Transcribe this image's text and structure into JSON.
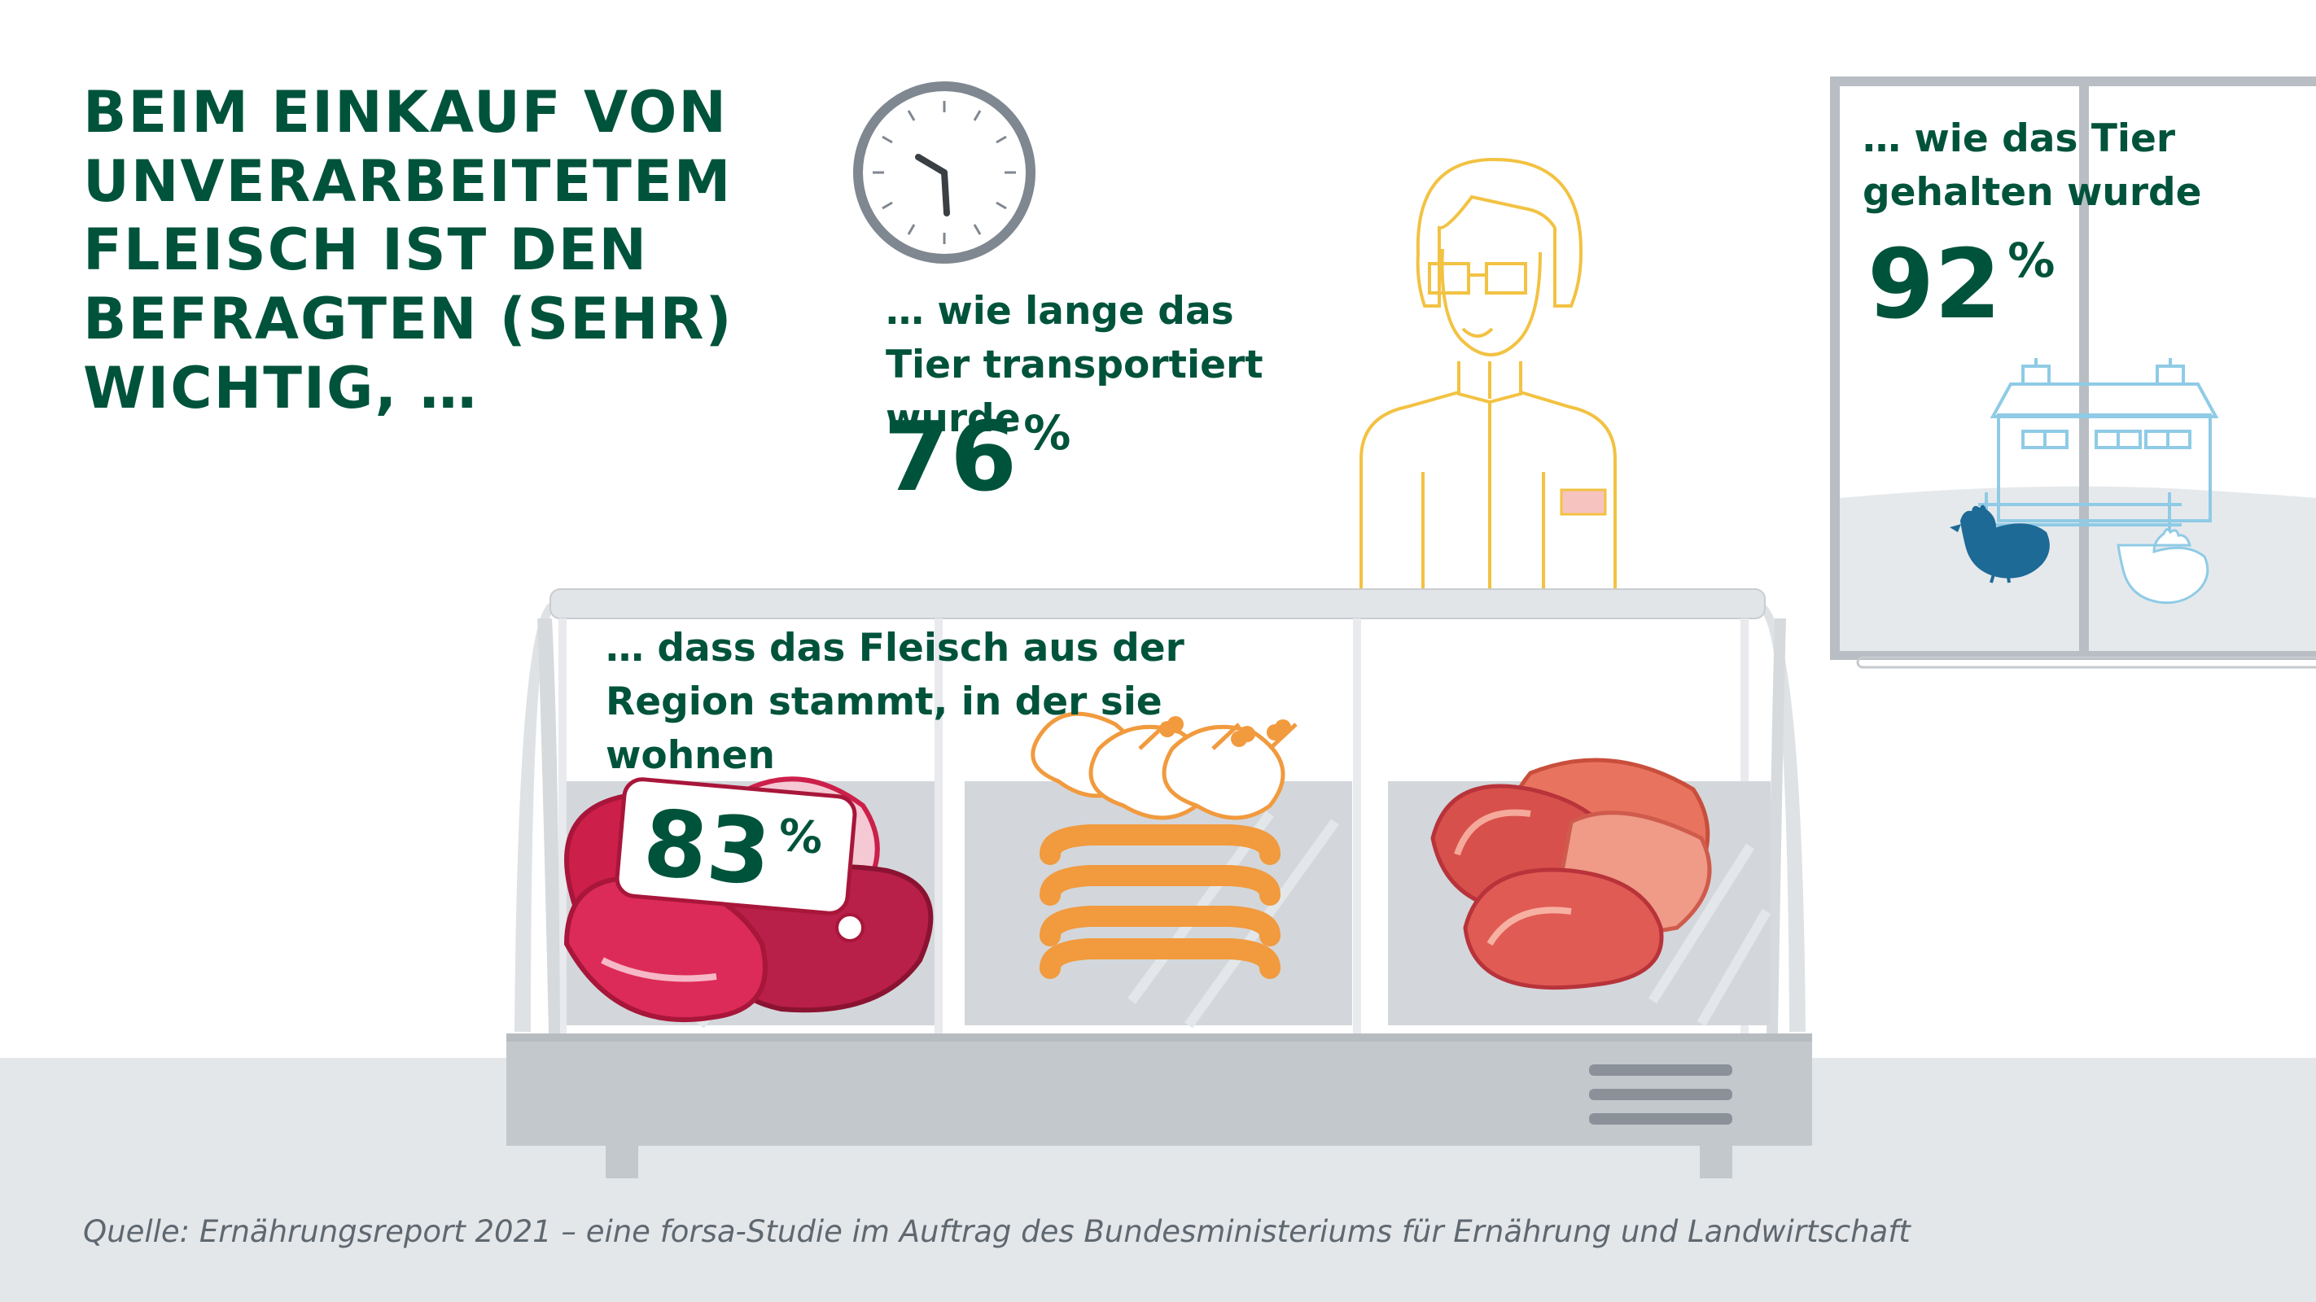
{
  "headline": "BEIM EINKAUF VON UNVERARBEITETEM FLEISCH IST DEN BEFRAGTEN (SEHR) WICHTIG, …",
  "stats": {
    "transport": {
      "label": "… wie lange das Tier transportiert wurde",
      "value": "76",
      "unit": "%"
    },
    "husbandry": {
      "label": "… wie das Tier gehalten wurde",
      "value": "92",
      "unit": "%"
    },
    "region": {
      "label": "… dass das Fleisch aus der Region stammt, in der sie wohnen",
      "value": "83",
      "unit": "%"
    }
  },
  "source": "Quelle: Ernährungsreport 2021 – eine forsa-Studie im Auftrag des Bundesministeriums für Ernährung und Landwirtschaft",
  "icons": [
    "clock-icon",
    "butcher-figure",
    "meat-counter",
    "steak-icon",
    "chicken-icon",
    "sausage-icon",
    "ham-icon",
    "barn-icon",
    "hen-icon"
  ],
  "colors": {
    "text_green": "#00533b",
    "counter_grey": "#c9cdd1",
    "meat_red": "#cc1f4a",
    "poultry_orange": "#f19a3e",
    "ham_salmon": "#e8735f",
    "barn_blue": "#8fcbe6",
    "hen_blue": "#1d6a96"
  }
}
